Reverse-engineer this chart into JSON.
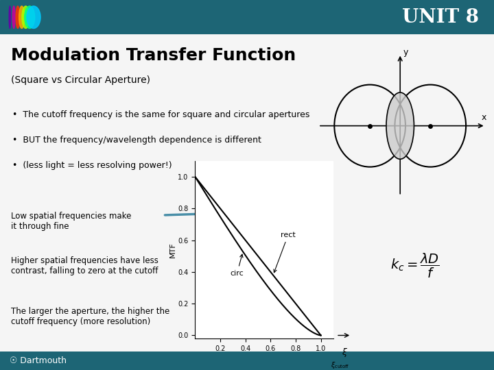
{
  "title": "UNIT 8",
  "main_title": "Modulation Transfer Function",
  "subtitle": "(Square vs Circular Aperture)",
  "bullets": [
    "The cutoff frequency is the same for square and circular apertures",
    "BUT the frequency/wavelength dependence is different",
    "(less light = less resolving power!)"
  ],
  "left_labels": [
    "Low spatial frequencies make\nit through fine",
    "Higher spatial frequencies have less\ncontrast, falling to zero at the cutoff",
    "The larger the aperture, the higher the\ncutoff frequency (more resolution)"
  ],
  "header_bg": "#1a5f6a",
  "header_text_color": "#ffffff",
  "body_bg": "#f5f5f5",
  "footer_bg": "#2a6a7a",
  "arrow_color": "#4a8fa8",
  "plot_rect_label": "rect",
  "plot_circ_label": "circ",
  "plot_xlabel": "ξ/ξ_cutoff",
  "plot_ylabel": "MTF",
  "formula": "$k_c = \\\\frac{\\\\lambda D}{f}$"
}
